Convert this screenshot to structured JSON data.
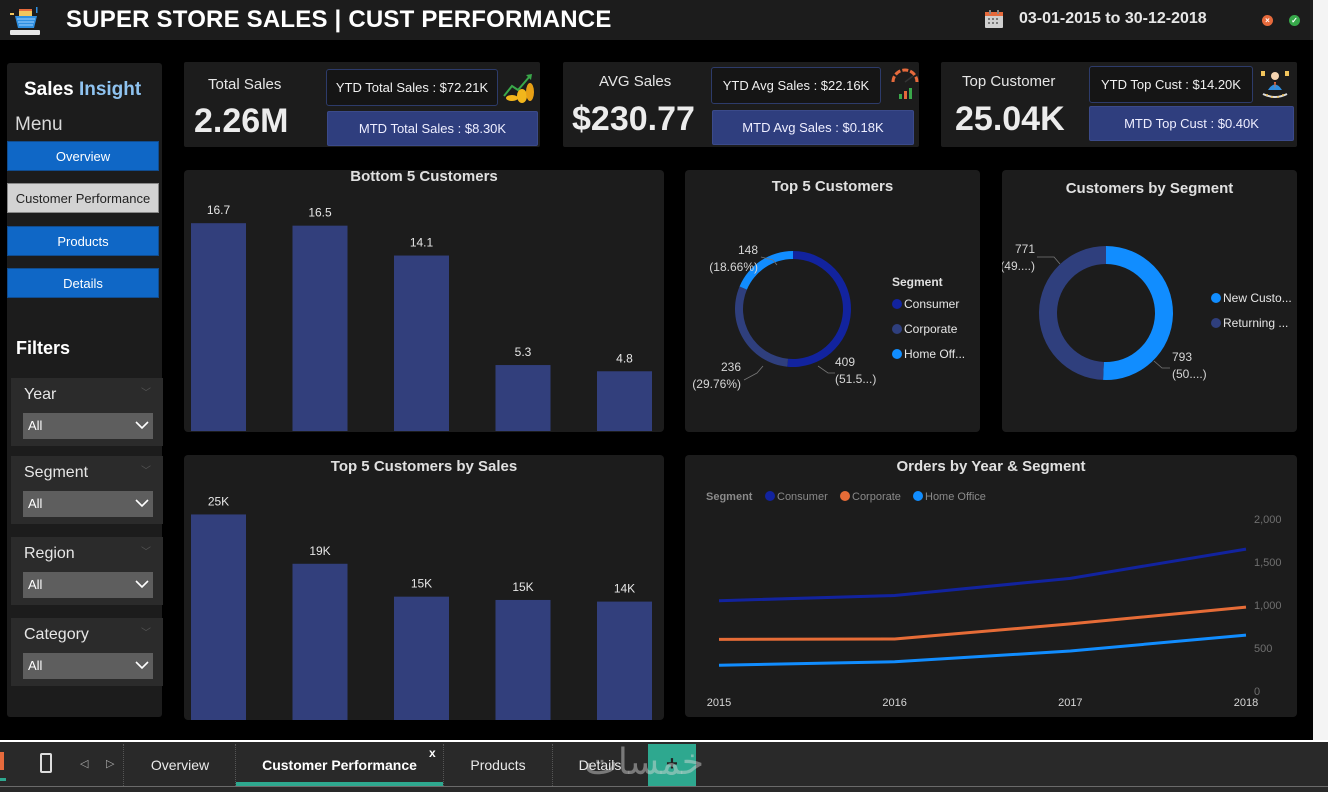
{
  "header": {
    "title": "SUPER STORE SALES | CUST PERFORMANCE",
    "date_range": "03-01-2015 to 30-12-2018",
    "logo_icon": "shopping-basket-icon",
    "calendar_icon": "calendar-icon",
    "clear_icon": "close-circle-icon",
    "ok_icon": "check-circle-icon"
  },
  "sidebar": {
    "brand_primary": "Sales",
    "brand_accent": "Insight",
    "menu_title": "Menu",
    "menu": [
      {
        "label": "Overview",
        "active": false
      },
      {
        "label": "Customer Performance",
        "active": true
      },
      {
        "label": "Products",
        "active": false
      },
      {
        "label": "Details",
        "active": false
      }
    ],
    "filters_title": "Filters",
    "filters": [
      {
        "label": "Year",
        "value": "All"
      },
      {
        "label": "Segment",
        "value": "All"
      },
      {
        "label": "Region",
        "value": "All"
      },
      {
        "label": "Category",
        "value": "All"
      }
    ]
  },
  "kpis": [
    {
      "label": "Total Sales",
      "value": "2.26M",
      "ytd": "YTD Total Sales : $72.21K",
      "mtd": "MTD Total Sales : $8.30K",
      "icon": "sales-growth-coins-icon"
    },
    {
      "label": "AVG Sales",
      "value": "$230.77",
      "ytd": "YTD Avg Sales : $22.16K",
      "mtd": "MTD Avg Sales : $0.18K",
      "icon": "gauge-chart-icon"
    },
    {
      "label": "Top Customer",
      "value": "25.04K",
      "ytd": "YTD Top Cust : $14.20K",
      "mtd": "MTD Top Cust : $0.40K",
      "icon": "top-customer-icon"
    }
  ],
  "colors": {
    "bar": "#323f7c",
    "consumer": "#12239e",
    "corporate": "#e66c37",
    "home_office": "#118dff",
    "returning": "#2f3f7d",
    "new_customer": "#118dff",
    "tab_accent": "#2ea88f"
  },
  "chart_data": [
    {
      "type": "bar",
      "title": "Bottom 5 Customers",
      "categories": [
        "",
        "",
        "",
        "",
        ""
      ],
      "values": [
        16.7,
        16.5,
        14.1,
        5.3,
        4.8
      ],
      "labels": [
        "16.7",
        "16.5",
        "14.1",
        "5.3",
        "4.8"
      ],
      "ylim": [
        0,
        18
      ]
    },
    {
      "type": "pie",
      "title": "Top 5 Customers",
      "legend_title": "Segment",
      "legend": [
        "Consumer",
        "Corporate",
        "Home Off..."
      ],
      "series": [
        {
          "name": "Consumer",
          "value": 409,
          "label": "409",
          "pct_label": "(51.5...)"
        },
        {
          "name": "Corporate",
          "value": 236,
          "label": "236",
          "pct_label": "(29.76%)"
        },
        {
          "name": "Home Office",
          "value": 148,
          "label": "148",
          "pct_label": "(18.66%)"
        }
      ],
      "legend_placement": "right"
    },
    {
      "type": "pie",
      "title": "Customers by Segment",
      "legend": [
        "New Custo...",
        "Returning ..."
      ],
      "series": [
        {
          "name": "New Customer",
          "value": 793,
          "label": "793",
          "pct_label": "(50....)"
        },
        {
          "name": "Returning Customer",
          "value": 771,
          "label": "771",
          "pct_label": "(49....)"
        }
      ],
      "legend_placement": "right"
    },
    {
      "type": "bar",
      "title": "Top 5 Customers by Sales",
      "categories": [
        "",
        "",
        "",
        "",
        ""
      ],
      "values": [
        25,
        19,
        15,
        14.6,
        14.4
      ],
      "labels": [
        "25K",
        "19K",
        "15K",
        "15K",
        "14K"
      ],
      "ylim": [
        0,
        27
      ]
    },
    {
      "type": "line",
      "title": "Orders by Year & Segment",
      "legend_title": "Segment",
      "legend": [
        "Consumer",
        "Corporate",
        "Home Office"
      ],
      "x": [
        "2015",
        "2016",
        "2017",
        "2018"
      ],
      "series": [
        {
          "name": "Consumer",
          "values": [
            1050,
            1110,
            1310,
            1650
          ]
        },
        {
          "name": "Corporate",
          "values": [
            600,
            605,
            780,
            975
          ]
        },
        {
          "name": "Home Office",
          "values": [
            300,
            340,
            465,
            650
          ]
        }
      ],
      "yticks": [
        "0",
        "500",
        "1,000",
        "1,500",
        "2,000"
      ],
      "ylim": [
        0,
        2000
      ],
      "y_axis_side": "right",
      "legend_placement": "top-left",
      "grid": false
    }
  ],
  "tabbar": {
    "tabs": [
      {
        "label": "Overview",
        "active": false
      },
      {
        "label": "Customer Performance",
        "active": true
      },
      {
        "label": "Products",
        "active": false
      },
      {
        "label": "Details",
        "active": false
      }
    ],
    "close_label": "x",
    "add_label": "+",
    "watermark": "خمسات"
  }
}
